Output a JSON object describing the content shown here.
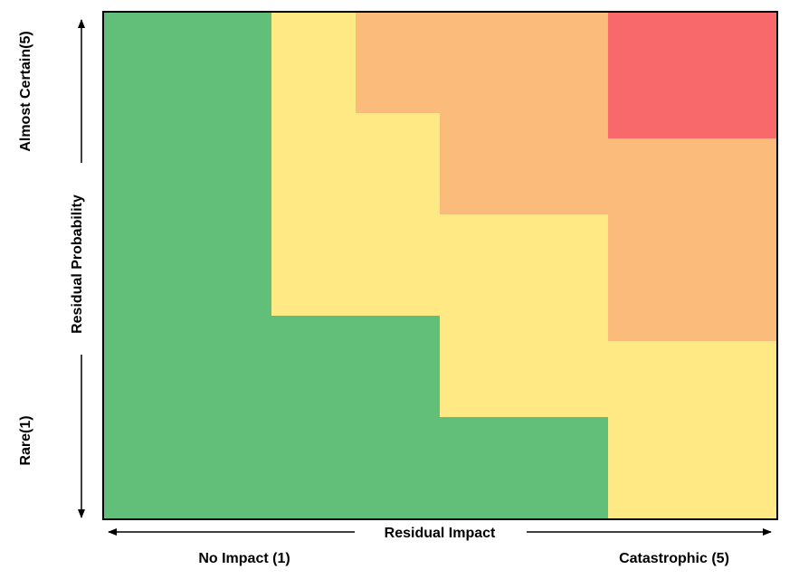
{
  "y_axis": {
    "title": "Residual Probability",
    "top_label": "Almost Certain(5)",
    "bottom_label": "Rare(1)"
  },
  "x_axis": {
    "title": "Residual Impact",
    "left_label": "No Impact (1)",
    "right_label": "Catastrophic (5)"
  },
  "colors": {
    "green": "#62BF7A",
    "yellow": "#FEE985",
    "orange": "#FBBB7A",
    "red": "#F8696B",
    "border": "#000000"
  },
  "matrix": {
    "column_divisions": [
      0.0,
      1.0,
      1.5,
      2.0,
      3.0,
      4.0
    ],
    "row_divisions": [
      0.0,
      1.0,
      2.0,
      3.0,
      4.0,
      5.0
    ],
    "note": "",
    "cells": [
      [
        "green",
        "yellow",
        "orange",
        "orange",
        "red"
      ],
      [
        "green",
        "yellow",
        "yellow",
        "orange",
        "orange"
      ],
      [
        "green",
        "yellow",
        "yellow",
        "yellow",
        "orange"
      ],
      [
        "green",
        "green",
        "green",
        "yellow",
        "yellow"
      ],
      [
        "green",
        "green",
        "green",
        "green",
        "yellow"
      ]
    ]
  }
}
